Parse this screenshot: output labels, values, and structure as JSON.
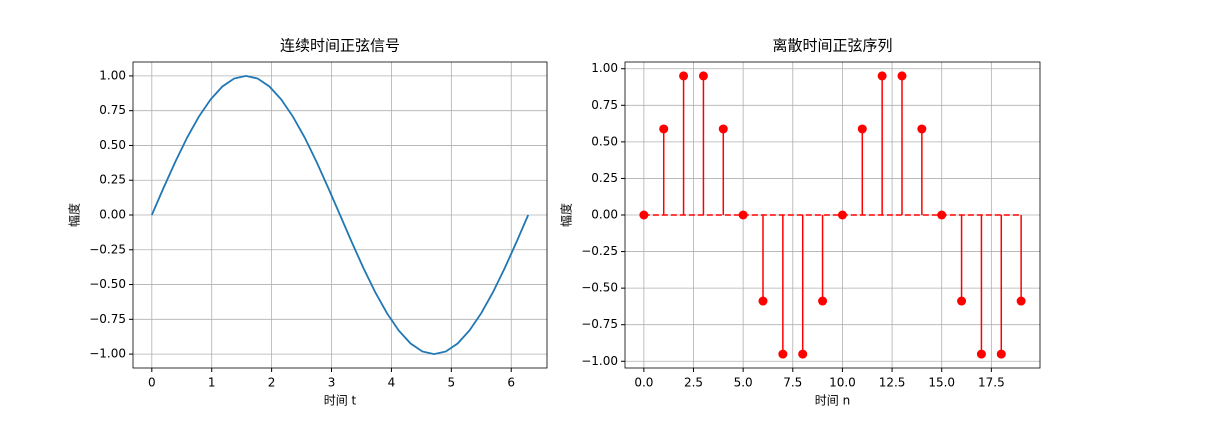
{
  "chart_data": [
    {
      "type": "line",
      "title": "连续时间正弦信号",
      "x_label": "时间 t",
      "y_label": "幅度",
      "grid": true,
      "x": [
        0,
        0.196,
        0.393,
        0.589,
        0.785,
        0.982,
        1.178,
        1.374,
        1.571,
        1.767,
        1.963,
        2.16,
        2.356,
        2.553,
        2.749,
        2.945,
        3.142,
        3.338,
        3.534,
        3.731,
        3.927,
        4.123,
        4.32,
        4.516,
        4.712,
        4.909,
        5.105,
        5.301,
        5.498,
        5.694,
        5.89,
        6.087,
        6.283
      ],
      "series": [
        {
          "color": "#1f77b4",
          "values": [
            0,
            0.195,
            0.383,
            0.556,
            0.707,
            0.831,
            0.924,
            0.981,
            1,
            0.981,
            0.924,
            0.831,
            0.707,
            0.556,
            0.383,
            0.195,
            0,
            -0.195,
            -0.383,
            -0.556,
            -0.707,
            -0.831,
            -0.924,
            -0.981,
            -1,
            -0.981,
            -0.924,
            -0.831,
            -0.707,
            -0.556,
            -0.383,
            -0.195,
            0
          ]
        }
      ],
      "xlim": [
        -0.314,
        6.597
      ],
      "ylim": [
        -1.1,
        1.1
      ],
      "xticks": [
        0,
        1,
        2,
        3,
        4,
        5,
        6
      ],
      "yticks": [
        {
          "value": -1,
          "label": "−1.00"
        },
        {
          "value": -0.75,
          "label": "−0.75"
        },
        {
          "value": -0.5,
          "label": "−0.50"
        },
        {
          "value": -0.25,
          "label": "−0.25"
        },
        {
          "value": 0,
          "label": "0.00"
        },
        {
          "value": 0.25,
          "label": "0.25"
        },
        {
          "value": 0.5,
          "label": "0.50"
        },
        {
          "value": 0.75,
          "label": "0.75"
        },
        {
          "value": 1,
          "label": "1.00"
        }
      ]
    },
    {
      "type": "stem",
      "title": "离散时间正弦序列",
      "x_label": "时间 n",
      "y_label": "幅度",
      "grid": true,
      "x": [
        0,
        1,
        2,
        3,
        4,
        5,
        6,
        7,
        8,
        9,
        10,
        11,
        12,
        13,
        14,
        15,
        16,
        17,
        18,
        19
      ],
      "series": [
        {
          "color": "#ff0000",
          "values": [
            0,
            0.588,
            0.951,
            0.951,
            0.588,
            0,
            -0.588,
            -0.951,
            -0.951,
            -0.588,
            0,
            0.588,
            0.951,
            0.951,
            0.588,
            0,
            -0.588,
            -0.951,
            -0.951,
            -0.588
          ]
        }
      ],
      "xlim": [
        -0.95,
        19.95
      ],
      "ylim": [
        -1.046,
        1.046
      ],
      "xticks": [
        {
          "value": 0,
          "label": "0.0"
        },
        2.5,
        {
          "value": 5,
          "label": "5.0"
        },
        7.5,
        {
          "value": 10,
          "label": "10.0"
        },
        12.5,
        {
          "value": 15,
          "label": "15.0"
        },
        17.5
      ],
      "yticks": [
        {
          "value": -1,
          "label": "−1.00"
        },
        {
          "value": -0.75,
          "label": "−0.75"
        },
        {
          "value": -0.5,
          "label": "−0.50"
        },
        {
          "value": -0.25,
          "label": "−0.25"
        },
        {
          "value": 0,
          "label": "0.00"
        },
        {
          "value": 0.25,
          "label": "0.25"
        },
        {
          "value": 0.5,
          "label": "0.50"
        },
        {
          "value": 0.75,
          "label": "0.75"
        },
        {
          "value": 1,
          "label": "1.00"
        }
      ]
    }
  ]
}
